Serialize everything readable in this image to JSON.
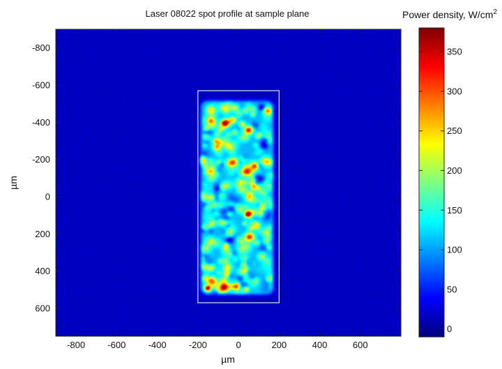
{
  "chart_data": {
    "type": "heatmap",
    "title": "Laser 08022 spot profile at sample plane",
    "xlabel": "µm",
    "ylabel": "µm",
    "xlim": [
      -900,
      800
    ],
    "ylim": [
      750,
      -900
    ],
    "x_ticks": [
      -800,
      -600,
      -400,
      -200,
      0,
      200,
      400,
      600
    ],
    "y_ticks": [
      -800,
      -600,
      -400,
      -200,
      0,
      200,
      400,
      600
    ],
    "x_tick_labels": [
      "-800",
      "-600",
      "-400",
      "-200",
      "0",
      "200",
      "400",
      "600"
    ],
    "y_tick_labels": [
      "-800",
      "-600",
      "-400",
      "-200",
      "0",
      "200",
      "400",
      "600"
    ],
    "colorbar": {
      "label_prefix": "Power density, W/cm",
      "label_superscript": "2",
      "range": [
        -10,
        380
      ],
      "ticks": [
        0,
        50,
        100,
        150,
        200,
        250,
        300,
        350
      ],
      "tick_labels": [
        "0",
        "50",
        "100",
        "150",
        "200",
        "250",
        "300",
        "350"
      ],
      "colormap": "jet"
    },
    "background_level": 15,
    "spot": {
      "x_range": [
        -190,
        175
      ],
      "y_range": [
        -520,
        530
      ],
      "mean_level": 110,
      "peak_level": 365
    },
    "rectangle": {
      "x_range": [
        -200,
        200
      ],
      "y_range": [
        -570,
        570
      ],
      "color": "#e6e6e6"
    }
  }
}
